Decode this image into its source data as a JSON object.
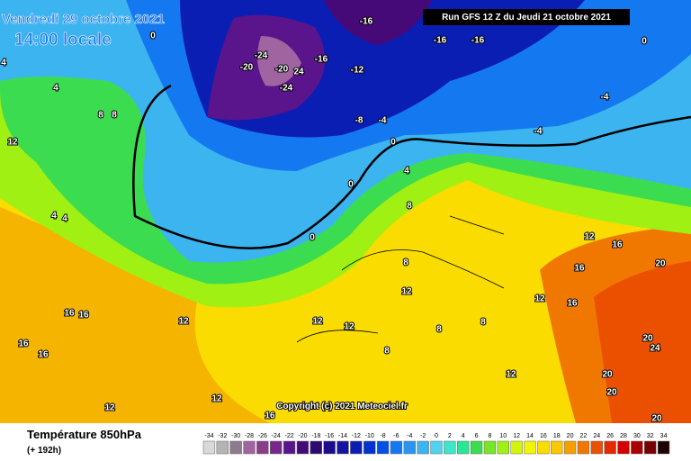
{
  "header": {
    "date": "Vendredi 29 octobre 2021",
    "time": "14:00 locale",
    "run": "Run GFS 12 Z du Jeudi 21 octobre 2021"
  },
  "footer": {
    "title": "Température 850hPa",
    "lead": "(+ 192h)",
    "copyright": "Copyright (c) 2021 Meteociel.fr"
  },
  "legend": {
    "ticks": [
      -34,
      -32,
      -30,
      -28,
      -26,
      -24,
      -22,
      -20,
      -18,
      -16,
      -14,
      -12,
      -10,
      -8,
      -6,
      -4,
      -2,
      0,
      2,
      4,
      6,
      8,
      10,
      12,
      14,
      16,
      18,
      20,
      22,
      24,
      26,
      28,
      30,
      32,
      34
    ],
    "colors": [
      "#d9d9d9",
      "#b4b4b4",
      "#8c7b8c",
      "#a064a0",
      "#8c3c8c",
      "#78288c",
      "#5a148c",
      "#460a78",
      "#2d0a6e",
      "#1e0a8c",
      "#1414a0",
      "#0a1eb4",
      "#0032d2",
      "#0050e6",
      "#1478f0",
      "#2896f0",
      "#3cb4f0",
      "#50d2f0",
      "#3ce6c8",
      "#28e696",
      "#3cdc50",
      "#78e628",
      "#a0f014",
      "#d2f50a",
      "#f0f500",
      "#fadc00",
      "#fac800",
      "#f5a000",
      "#f07800",
      "#eb5000",
      "#e62800",
      "#d20000",
      "#aa0000",
      "#780000",
      "#1e0000"
    ]
  },
  "contour_labels": [
    -16,
    -16,
    -16,
    -20,
    -24,
    -20,
    24,
    -24,
    -16,
    -12,
    -8,
    -4,
    0,
    -4,
    -4,
    0,
    0,
    4,
    8,
    8,
    12,
    4,
    4,
    0,
    0,
    4,
    8,
    12,
    16,
    16,
    20,
    16,
    12,
    8,
    12,
    16,
    16,
    12,
    12,
    8,
    12,
    20,
    24,
    20,
    20,
    12,
    12,
    16,
    20,
    4,
    16,
    16,
    12,
    8,
    8
  ]
}
